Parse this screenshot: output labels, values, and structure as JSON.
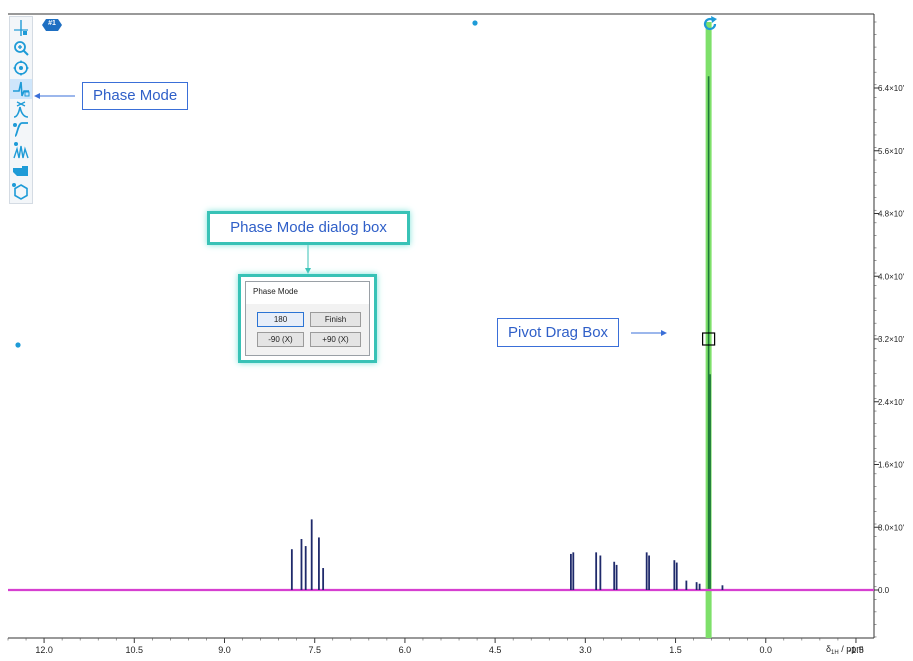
{
  "spectrum_tag": "#1",
  "callouts": {
    "phase_mode": "Phase Mode",
    "dialog": "Phase Mode dialog box",
    "pivot": "Pivot Drag Box"
  },
  "dialog": {
    "title": "Phase Mode",
    "btn_180": "180",
    "btn_finish": "Finish",
    "btn_minus90": "-90 (X)",
    "btn_plus90": "+90 (X)"
  },
  "toolbar_icons": [
    "pivot-tool-icon",
    "zoom-icon",
    "pan-icon",
    "phase-mode-icon",
    "peak-pick-icon",
    "integrate-icon",
    "multiplet-icon",
    "hand-pointer-icon",
    "molecule-icon"
  ],
  "colors": {
    "spectrum": "#1f2a6b",
    "baseline": "#d63fd0",
    "pivot_line": "#7ee06a",
    "pivot_peak": "#1f7a3a",
    "accent": "#1e9bd7"
  },
  "chart_data": {
    "type": "line",
    "x_tick_labels": [
      "12.0",
      "10.5",
      "9.0",
      "7.5",
      "6.0",
      "4.5",
      "3.0",
      "1.5",
      "0.0",
      "-1.5"
    ],
    "x_axis_label": "δ",
    "x_axis_label_sub": "1H",
    "x_axis_unit": "/ ppm",
    "x_reversed": true,
    "xlim": [
      12.6,
      -1.8
    ],
    "ylim": [
      -0.25,
      7.0
    ],
    "y_tick_labels": [
      "0.0",
      "8.0×10'",
      "1.6×10'",
      "2.4×10'",
      "3.2×10'",
      "4.0×10'",
      "4.8×10'",
      "5.6×10'",
      "6.4×10'"
    ],
    "y_tick_values": [
      0,
      0.8,
      1.6,
      2.4,
      3.2,
      4.0,
      4.8,
      5.6,
      6.4
    ],
    "pivot_ppm": 0.95,
    "pivot_peak_height": 6.55,
    "pivot_peak_inner": 2.75,
    "pivot_box_y": 3.2,
    "peaks": [
      {
        "ppm": 7.88,
        "h": 0.52
      },
      {
        "ppm": 7.72,
        "h": 0.65
      },
      {
        "ppm": 7.65,
        "h": 0.56
      },
      {
        "ppm": 7.55,
        "h": 0.9
      },
      {
        "ppm": 7.43,
        "h": 0.67
      },
      {
        "ppm": 7.36,
        "h": 0.28
      },
      {
        "ppm": 3.24,
        "h": 0.46
      },
      {
        "ppm": 3.2,
        "h": 0.48
      },
      {
        "ppm": 2.82,
        "h": 0.48
      },
      {
        "ppm": 2.75,
        "h": 0.44
      },
      {
        "ppm": 2.52,
        "h": 0.36
      },
      {
        "ppm": 2.48,
        "h": 0.32
      },
      {
        "ppm": 1.98,
        "h": 0.48
      },
      {
        "ppm": 1.94,
        "h": 0.44
      },
      {
        "ppm": 1.52,
        "h": 0.38
      },
      {
        "ppm": 1.48,
        "h": 0.35
      },
      {
        "ppm": 1.32,
        "h": 0.12
      },
      {
        "ppm": 1.15,
        "h": 0.1
      },
      {
        "ppm": 1.1,
        "h": 0.08
      },
      {
        "ppm": 0.72,
        "h": 0.06
      }
    ]
  }
}
